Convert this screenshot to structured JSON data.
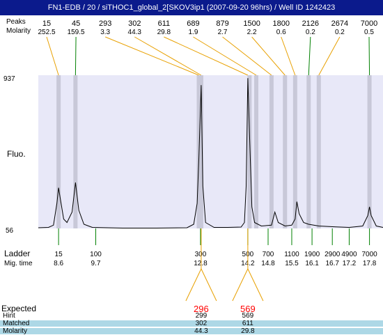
{
  "window": {
    "title": "FN1-EDB / 20 / siTHOC1_global_2[SKOV3ip1 (2007-09-20 96hrs) / Well ID 1242423"
  },
  "colors": {
    "title_bar": "#0b1a8c",
    "plot_bg": "#e8e8f8",
    "band": "#c8c8d8",
    "trace": "#000000",
    "peak_link": "#e8a000",
    "ladder_tick": "#008000",
    "expected": "#ff0000",
    "row_shade": "#add8e6"
  },
  "chart_data": {
    "type": "line",
    "ylabel": "Fluo.",
    "ylim": [
      56,
      937
    ],
    "y_tick_labels": [
      "937",
      "56"
    ],
    "x_domain": [
      8.0,
      18.2
    ],
    "header_labels": [
      "Peaks",
      "Molarity"
    ],
    "peaks": [
      {
        "size": "15",
        "molarity": "252.5",
        "time": 8.6
      },
      {
        "size": "45",
        "molarity": "159.5",
        "time": 9.1
      },
      {
        "size": "293",
        "molarity": "3.3",
        "time": 12.75
      },
      {
        "size": "302",
        "molarity": "44.3",
        "time": 12.82
      },
      {
        "size": "611",
        "molarity": "29.8",
        "time": 14.2
      },
      {
        "size": "689",
        "molarity": "1.9",
        "time": 14.45
      },
      {
        "size": "879",
        "molarity": "2.7",
        "time": 14.9
      },
      {
        "size": "1500",
        "molarity": "2.2",
        "time": 15.3
      },
      {
        "size": "1800",
        "molarity": "0.6",
        "time": 15.6
      },
      {
        "size": "2126",
        "molarity": "0.2",
        "time": 16.0
      },
      {
        "size": "2674",
        "molarity": "0.2",
        "time": 16.3
      },
      {
        "size": "7000",
        "molarity": "0.5",
        "time": 17.8
      }
    ],
    "bands": [
      8.6,
      9.1,
      12.75,
      12.82,
      14.25,
      14.45,
      14.9,
      15.3,
      15.6,
      16.0,
      16.3,
      17.8
    ],
    "trace": [
      [
        8.0,
        60
      ],
      [
        8.3,
        62
      ],
      [
        8.45,
        75
      ],
      [
        8.55,
        200
      ],
      [
        8.6,
        290
      ],
      [
        8.65,
        230
      ],
      [
        8.75,
        110
      ],
      [
        8.85,
        90
      ],
      [
        9.0,
        150
      ],
      [
        9.1,
        320
      ],
      [
        9.2,
        160
      ],
      [
        9.35,
        80
      ],
      [
        9.6,
        62
      ],
      [
        10.5,
        58
      ],
      [
        11.5,
        58
      ],
      [
        12.4,
        60
      ],
      [
        12.6,
        80
      ],
      [
        12.7,
        200
      ],
      [
        12.75,
        450
      ],
      [
        12.82,
        880
      ],
      [
        12.87,
        300
      ],
      [
        12.95,
        90
      ],
      [
        13.2,
        62
      ],
      [
        13.6,
        62
      ],
      [
        14.0,
        64
      ],
      [
        14.1,
        90
      ],
      [
        14.15,
        300
      ],
      [
        14.2,
        920
      ],
      [
        14.25,
        600
      ],
      [
        14.32,
        180
      ],
      [
        14.4,
        90
      ],
      [
        14.6,
        70
      ],
      [
        14.9,
        75
      ],
      [
        15.0,
        150
      ],
      [
        15.1,
        90
      ],
      [
        15.3,
        70
      ],
      [
        15.5,
        75
      ],
      [
        15.6,
        110
      ],
      [
        15.65,
        210
      ],
      [
        15.72,
        140
      ],
      [
        15.85,
        90
      ],
      [
        16.0,
        80
      ],
      [
        16.3,
        70
      ],
      [
        16.8,
        65
      ],
      [
        17.2,
        62
      ],
      [
        17.6,
        70
      ],
      [
        17.75,
        130
      ],
      [
        17.8,
        180
      ],
      [
        17.85,
        130
      ],
      [
        18.0,
        70
      ],
      [
        18.2,
        62
      ]
    ],
    "ladder": {
      "row_labels": [
        "Ladder",
        "Mig. time"
      ],
      "items": [
        {
          "size": "15",
          "time": "8.6"
        },
        {
          "size": "100",
          "time": "9.7"
        },
        {
          "size": "300",
          "time": "12.8"
        },
        {
          "size": "500",
          "time": "14.2"
        },
        {
          "size": "700",
          "time": "14.8"
        },
        {
          "size": "1100",
          "time": "15.5"
        },
        {
          "size": "1900",
          "time": "16.1"
        },
        {
          "size": "2900",
          "time": "16.7"
        },
        {
          "size": "4900",
          "time": "17.2"
        },
        {
          "size": "7000",
          "time": "17.8"
        }
      ]
    },
    "expected": {
      "row_labels": [
        "Expected",
        "Hint",
        "Matched",
        "Molarity"
      ],
      "items": [
        {
          "expected": "296",
          "hint": "299",
          "matched": "302",
          "molarity": "44.3",
          "time": 12.82
        },
        {
          "expected": "569",
          "hint": "569",
          "matched": "611",
          "molarity": "29.8",
          "time": 14.2
        }
      ]
    }
  }
}
